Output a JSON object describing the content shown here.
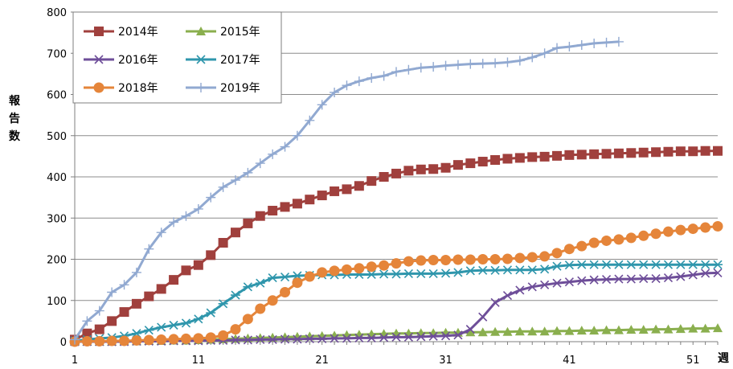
{
  "chart_data": {
    "type": "line",
    "xlabel": "週",
    "ylabel_chars": [
      "報",
      "告",
      "数"
    ],
    "xlim": [
      1,
      53
    ],
    "ylim": [
      0,
      800
    ],
    "x_ticks": [
      1,
      11,
      21,
      31,
      41,
      51
    ],
    "y_ticks": [
      0,
      100,
      200,
      300,
      400,
      500,
      600,
      700,
      800
    ],
    "grid": "horizontal",
    "legend_position": "top-left",
    "series": [
      {
        "name": "2014年",
        "color": "#A0403D",
        "marker": "square",
        "values": [
          5,
          20,
          30,
          50,
          72,
          92,
          110,
          128,
          150,
          173,
          186,
          210,
          240,
          265,
          287,
          305,
          318,
          327,
          335,
          345,
          355,
          365,
          370,
          378,
          390,
          400,
          408,
          415,
          418,
          419,
          422,
          429,
          433,
          437,
          441,
          444,
          446,
          448,
          449,
          451,
          453,
          454,
          455,
          456,
          457,
          458,
          459,
          460,
          461,
          462,
          462,
          463,
          463
        ]
      },
      {
        "name": "2015年",
        "color": "#8AAF4E",
        "marker": "triangle",
        "values": [
          0,
          0,
          0,
          0,
          1,
          1,
          2,
          2,
          3,
          3,
          4,
          5,
          6,
          7,
          8,
          9,
          10,
          11,
          12,
          13,
          14,
          15,
          16,
          17,
          18,
          19,
          20,
          20,
          21,
          21,
          22,
          22,
          23,
          23,
          24,
          24,
          25,
          25,
          25,
          26,
          26,
          27,
          27,
          28,
          28,
          29,
          29,
          30,
          30,
          31,
          32,
          32,
          33
        ]
      },
      {
        "name": "2016年",
        "color": "#6E4E99",
        "marker": "x",
        "values": [
          0,
          0,
          0,
          0,
          0,
          1,
          1,
          1,
          2,
          2,
          2,
          3,
          3,
          4,
          4,
          5,
          5,
          6,
          6,
          7,
          7,
          8,
          8,
          9,
          9,
          10,
          11,
          11,
          12,
          13,
          14,
          16,
          30,
          60,
          95,
          112,
          125,
          133,
          138,
          142,
          145,
          148,
          150,
          151,
          152,
          152,
          153,
          153,
          155,
          158,
          162,
          166,
          167
        ]
      },
      {
        "name": "2017年",
        "color": "#2F96AC",
        "marker": "asterisk",
        "values": [
          2,
          5,
          8,
          10,
          14,
          20,
          28,
          35,
          40,
          45,
          55,
          70,
          92,
          113,
          133,
          142,
          155,
          157,
          160,
          161,
          162,
          162,
          163,
          163,
          163,
          164,
          164,
          165,
          165,
          165,
          166,
          168,
          172,
          173,
          173,
          174,
          174,
          174,
          176,
          183,
          186,
          187,
          187,
          187,
          187,
          187,
          187,
          187,
          187,
          187,
          187,
          187,
          187
        ]
      },
      {
        "name": "2018年",
        "color": "#E5853A",
        "marker": "circle",
        "values": [
          0,
          1,
          1,
          2,
          2,
          3,
          4,
          5,
          6,
          7,
          8,
          10,
          15,
          30,
          55,
          80,
          100,
          120,
          143,
          158,
          168,
          172,
          175,
          178,
          182,
          185,
          190,
          195,
          197,
          198,
          198,
          199,
          199,
          200,
          200,
          201,
          203,
          205,
          207,
          215,
          225,
          232,
          240,
          245,
          248,
          252,
          257,
          262,
          267,
          271,
          274,
          277,
          280
        ]
      },
      {
        "name": "2019年",
        "color": "#91A9D1",
        "marker": "plus",
        "values": [
          5,
          50,
          75,
          120,
          138,
          168,
          225,
          265,
          290,
          305,
          322,
          350,
          375,
          392,
          410,
          433,
          455,
          473,
          500,
          537,
          575,
          605,
          622,
          632,
          640,
          645,
          655,
          660,
          665,
          667,
          670,
          672,
          674,
          675,
          676,
          678,
          682,
          690,
          700,
          713,
          716,
          720,
          724,
          726,
          728
        ]
      }
    ]
  }
}
